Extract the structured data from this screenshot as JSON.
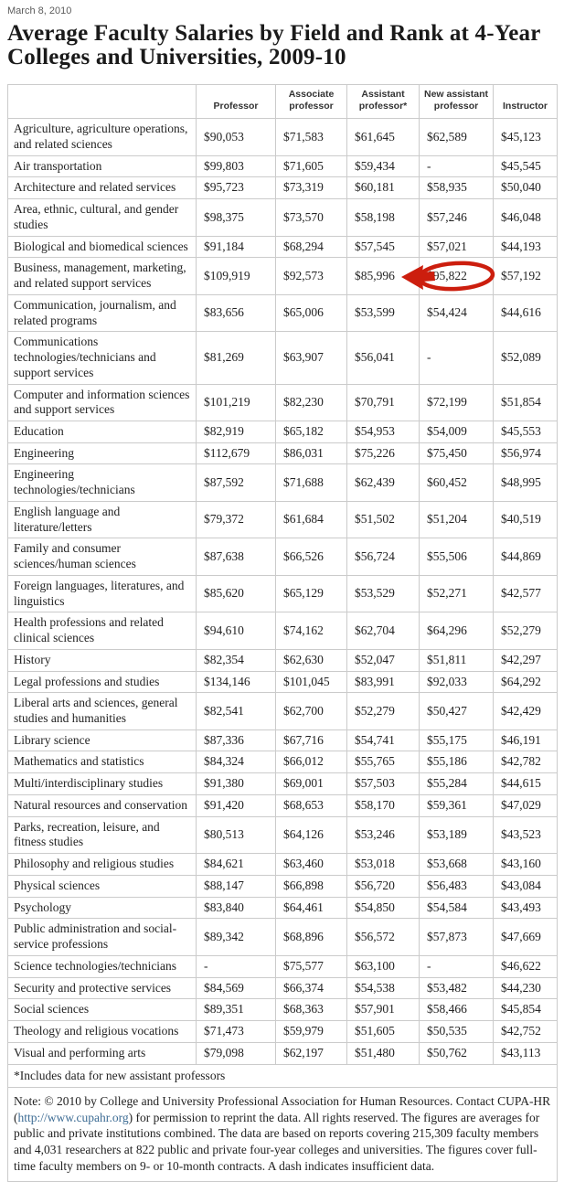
{
  "page": {
    "date": "March 8, 2010",
    "title": "Average Faculty Salaries by Field and Rank at 4-Year Colleges and Universities, 2009-10"
  },
  "table": {
    "column_headers": [
      "Professor",
      "Associate professor",
      "Assistant professor*",
      "New assistant professor",
      "Instructor"
    ],
    "rows": [
      {
        "field": "Agriculture, agriculture operations, and related sciences",
        "values": [
          "$90,053",
          "$71,583",
          "$61,645",
          "$62,589",
          "$45,123"
        ]
      },
      {
        "field": "Air transportation",
        "values": [
          "$99,803",
          "$71,605",
          "$59,434",
          "-",
          "$45,545"
        ]
      },
      {
        "field": "Architecture and related services",
        "values": [
          "$95,723",
          "$73,319",
          "$60,181",
          "$58,935",
          "$50,040"
        ]
      },
      {
        "field": "Area, ethnic, cultural, and gender studies",
        "values": [
          "$98,375",
          "$73,570",
          "$58,198",
          "$57,246",
          "$46,048"
        ]
      },
      {
        "field": "Biological and biomedical sciences",
        "values": [
          "$91,184",
          "$68,294",
          "$57,545",
          "$57,021",
          "$44,193"
        ]
      },
      {
        "field": "Business, management, marketing, and related support services",
        "values": [
          "$109,919",
          "$92,573",
          "$85,996",
          "$95,822",
          "$57,192"
        ]
      },
      {
        "field": "Communication, journalism, and related programs",
        "values": [
          "$83,656",
          "$65,006",
          "$53,599",
          "$54,424",
          "$44,616"
        ]
      },
      {
        "field": "Communications technologies/technicians and support services",
        "values": [
          "$81,269",
          "$63,907",
          "$56,041",
          "-",
          "$52,089"
        ]
      },
      {
        "field": "Computer and information sciences and support services",
        "values": [
          "$101,219",
          "$82,230",
          "$70,791",
          "$72,199",
          "$51,854"
        ]
      },
      {
        "field": "Education",
        "values": [
          "$82,919",
          "$65,182",
          "$54,953",
          "$54,009",
          "$45,553"
        ]
      },
      {
        "field": "Engineering",
        "values": [
          "$112,679",
          "$86,031",
          "$75,226",
          "$75,450",
          "$56,974"
        ]
      },
      {
        "field": "Engineering technologies/technicians",
        "values": [
          "$87,592",
          "$71,688",
          "$62,439",
          "$60,452",
          "$48,995"
        ]
      },
      {
        "field": "English language and literature/letters",
        "values": [
          "$79,372",
          "$61,684",
          "$51,502",
          "$51,204",
          "$40,519"
        ]
      },
      {
        "field": "Family and consumer sciences/human sciences",
        "values": [
          "$87,638",
          "$66,526",
          "$56,724",
          "$55,506",
          "$44,869"
        ]
      },
      {
        "field": "Foreign languages, literatures, and linguistics",
        "values": [
          "$85,620",
          "$65,129",
          "$53,529",
          "$52,271",
          "$42,577"
        ]
      },
      {
        "field": "Health professions and related clinical sciences",
        "values": [
          "$94,610",
          "$74,162",
          "$62,704",
          "$64,296",
          "$52,279"
        ]
      },
      {
        "field": "History",
        "values": [
          "$82,354",
          "$62,630",
          "$52,047",
          "$51,811",
          "$42,297"
        ]
      },
      {
        "field": "Legal professions and studies",
        "values": [
          "$134,146",
          "$101,045",
          "$83,991",
          "$92,033",
          "$64,292"
        ]
      },
      {
        "field": "Liberal arts and sciences, general studies and humanities",
        "values": [
          "$82,541",
          "$62,700",
          "$52,279",
          "$50,427",
          "$42,429"
        ]
      },
      {
        "field": "Library science",
        "values": [
          "$87,336",
          "$67,716",
          "$54,741",
          "$55,175",
          "$46,191"
        ]
      },
      {
        "field": "Mathematics and statistics",
        "values": [
          "$84,324",
          "$66,012",
          "$55,765",
          "$55,186",
          "$42,782"
        ]
      },
      {
        "field": "Multi/interdisciplinary studies",
        "values": [
          "$91,380",
          "$69,001",
          "$57,503",
          "$55,284",
          "$44,615"
        ]
      },
      {
        "field": "Natural resources and conservation",
        "values": [
          "$91,420",
          "$68,653",
          "$58,170",
          "$59,361",
          "$47,029"
        ]
      },
      {
        "field": "Parks, recreation, leisure, and fitness studies",
        "values": [
          "$80,513",
          "$64,126",
          "$53,246",
          "$53,189",
          "$43,523"
        ]
      },
      {
        "field": "Philosophy and religious studies",
        "values": [
          "$84,621",
          "$63,460",
          "$53,018",
          "$53,668",
          "$43,160"
        ]
      },
      {
        "field": "Physical sciences",
        "values": [
          "$88,147",
          "$66,898",
          "$56,720",
          "$56,483",
          "$43,084"
        ]
      },
      {
        "field": "Psychology",
        "values": [
          "$83,840",
          "$64,461",
          "$54,850",
          "$54,584",
          "$43,493"
        ]
      },
      {
        "field": "Public administration and social-service professions",
        "values": [
          "$89,342",
          "$68,896",
          "$56,572",
          "$57,873",
          "$47,669"
        ]
      },
      {
        "field": "Science technologies/technicians",
        "values": [
          "-",
          "$75,577",
          "$63,100",
          "-",
          "$46,622"
        ]
      },
      {
        "field": "Security and protective services",
        "values": [
          "$84,569",
          "$66,374",
          "$54,538",
          "$53,482",
          "$44,230"
        ]
      },
      {
        "field": "Social sciences",
        "values": [
          "$89,351",
          "$68,363",
          "$57,901",
          "$58,466",
          "$45,854"
        ]
      },
      {
        "field": "Theology and religious vocations",
        "values": [
          "$71,473",
          "$59,979",
          "$51,605",
          "$50,535",
          "$42,752"
        ]
      },
      {
        "field": "Visual and performing arts",
        "values": [
          "$79,098",
          "$62,197",
          "$51,480",
          "$50,762",
          "$43,113"
        ]
      }
    ],
    "footnote": "*Includes data for new assistant professors",
    "note": {
      "before_link": "Note: © 2010 by College and University Professional Association for Human Resources. Contact CUPA-HR (",
      "link_text": "http://www.cupahr.org",
      "after_link": ") for permission to reprint the data. All rights reserved. The figures are averages for public and private institutions combined. The data are based on reports covering 215,309 faculty members and 4,031 researchers at 822 public and private four-year colleges and universities. The figures cover full-time faculty members on 9- or 10-month contracts. A dash indicates insufficient data."
    }
  },
  "annotation": {
    "shape": "hand-drawn red ellipse with left-pointing arrow",
    "circled_value": "$95,822",
    "circled_row": "Business, management, marketing, and related support services",
    "circled_column": "New assistant professor",
    "arrow_points_toward": "$85,996",
    "color": "#cc1e0e",
    "row_index": 5,
    "cell_index": 4
  },
  "colors": {
    "background": "#ffffff",
    "text": "#222222",
    "date_text": "#5c5c5c",
    "table_border": "#cbcbcb",
    "link": "#3d6c94",
    "annotation_red": "#cc1e0e"
  }
}
